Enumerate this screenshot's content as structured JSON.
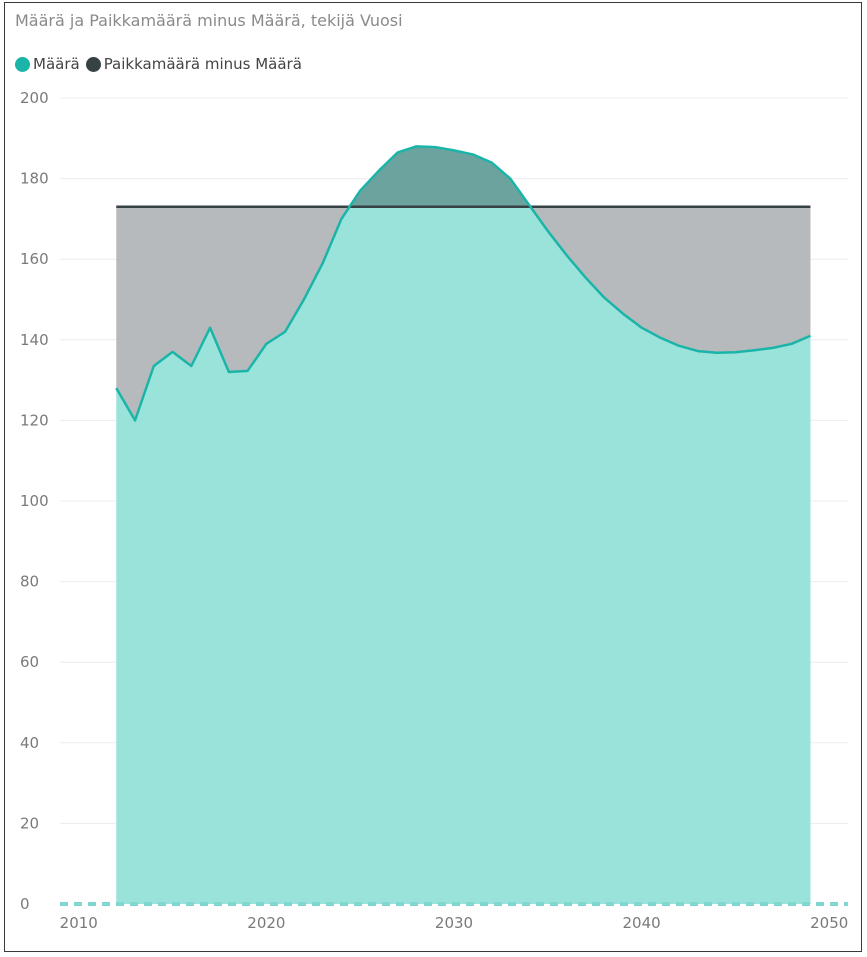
{
  "chart_data": {
    "type": "area",
    "title": "Määrä ja Paikkamäärä minus Määrä, tekijä Vuosi",
    "legend_position": "top-left",
    "grid": true,
    "xlim": [
      2009,
      2051
    ],
    "ylim": [
      0,
      200
    ],
    "x_ticks": [
      "2010",
      "2020",
      "2030",
      "2040",
      "2050"
    ],
    "y_ticks": [
      "0",
      "20",
      "40",
      "60",
      "80",
      "100",
      "120",
      "140",
      "160",
      "180",
      "200"
    ],
    "x": [
      2012,
      2013,
      2014,
      2015,
      2016,
      2017,
      2018,
      2019,
      2020,
      2021,
      2022,
      2023,
      2024,
      2025,
      2026,
      2027,
      2028,
      2029,
      2030,
      2031,
      2032,
      2033,
      2034,
      2035,
      2036,
      2037,
      2038,
      2039,
      2040,
      2041,
      2042,
      2043,
      2044,
      2045,
      2046,
      2047,
      2048,
      2049
    ],
    "series": [
      {
        "name": "Määrä",
        "color": "#1ab5a8",
        "fill": "#9ae3db",
        "values": [
          128,
          120,
          133.5,
          137,
          133.5,
          143,
          132,
          132.3,
          139,
          142,
          150,
          159,
          170,
          177,
          182,
          186.5,
          188,
          187.8,
          187,
          186,
          184,
          180,
          173.5,
          167,
          161,
          155.5,
          150.5,
          146.5,
          143,
          140.5,
          138.5,
          137.2,
          136.8,
          136.9,
          137.4,
          138,
          139,
          141
        ]
      },
      {
        "name": "Paikkamäärä minus Määrä",
        "color": "#374245",
        "fill": "#b2b6b8",
        "total": 173
      }
    ]
  }
}
